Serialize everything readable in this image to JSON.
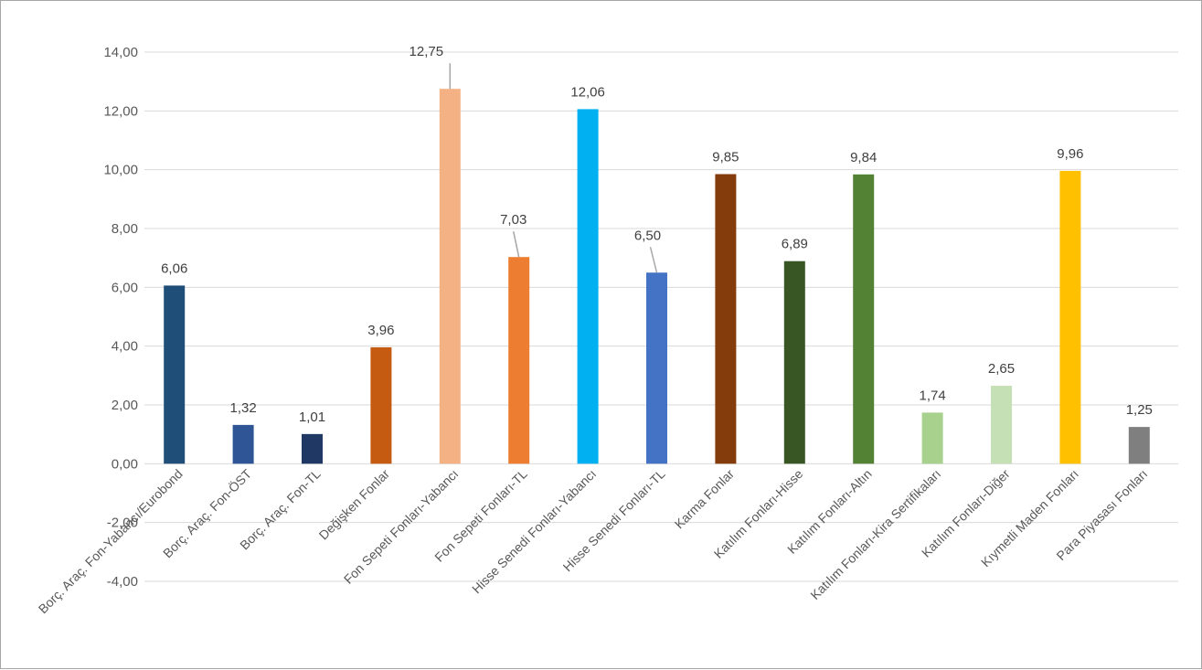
{
  "chart_data": {
    "type": "bar",
    "title": "",
    "xlabel": "",
    "ylabel": "",
    "ylim": [
      -4,
      14
    ],
    "grid": true,
    "legend": "none",
    "y_ticks": [
      "-4,00",
      "-2,00",
      "0,00",
      "2,00",
      "4,00",
      "6,00",
      "8,00",
      "10,00",
      "12,00",
      "14,00"
    ],
    "categories": [
      "Borç. Araç. Fon-Yabancı/Eurobond",
      "Borç. Araç. Fon-ÖST",
      "Borç. Araç. Fon-TL",
      "Değişken Fonlar",
      "Fon Sepeti Fonları-Yabancı",
      "Fon Sepeti Fonları-TL",
      "Hisse Senedi Fonları-Yabancı",
      "Hisse Senedi Fonları-TL",
      "Karma Fonlar",
      "Katılım Fonları-Hisse",
      "Katılım Fonları-Altın",
      "Katılım Fonları-Kira Sertifikaları",
      "Katılım Fonları-Diğer",
      "Kıymetli Maden Fonları",
      "Para Piyasası Fonları"
    ],
    "values": [
      6.06,
      1.32,
      1.01,
      3.96,
      12.75,
      7.03,
      12.06,
      6.5,
      9.85,
      6.89,
      9.84,
      1.74,
      2.65,
      9.96,
      1.25
    ],
    "data_labels": [
      "6,06",
      "1,32",
      "1,01",
      "3,96",
      "12,75",
      "7,03",
      "12,06",
      "6,50",
      "9,85",
      "6,89",
      "9,84",
      "1,74",
      "2,65",
      "9,96",
      "1,25"
    ],
    "colors": [
      "#1f4e79",
      "#2f5597",
      "#203864",
      "#c55a11",
      "#f4b183",
      "#ed7d31",
      "#00b0f0",
      "#4472c4",
      "#843c0c",
      "#375623",
      "#548235",
      "#a9d18e",
      "#c5e0b4",
      "#ffc000",
      "#7f7f7f"
    ],
    "label_leader_lines": [
      4,
      5,
      7
    ]
  }
}
